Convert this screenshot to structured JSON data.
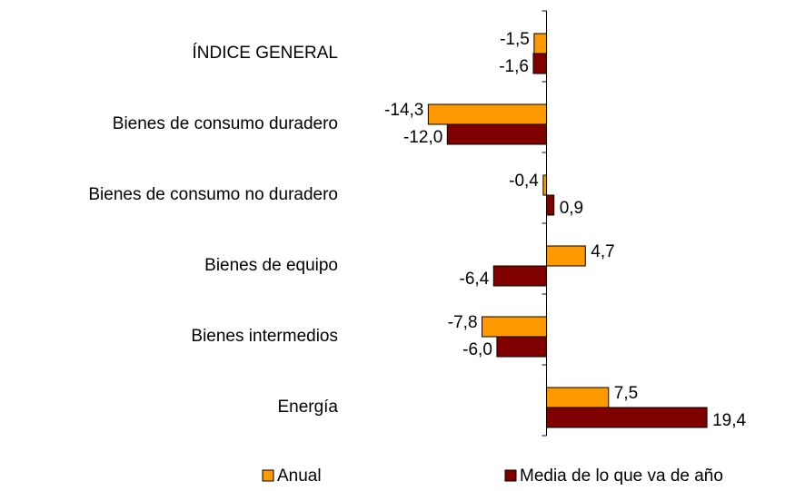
{
  "chart_data": {
    "type": "hbar",
    "categories": [
      "ÍNDICE GENERAL",
      "Bienes de consumo duradero",
      "Bienes de consumo no duradero",
      "Bienes de equipo",
      "Bienes intermedios",
      "Energía"
    ],
    "series": [
      {
        "name": "Anual",
        "color": "#ff9900",
        "values": [
          -1.5,
          -14.3,
          -0.4,
          4.7,
          -7.8,
          7.5
        ],
        "value_labels": [
          "-1,5",
          "-14,3",
          "-0,4",
          "4,7",
          "-7,8",
          "7,5"
        ]
      },
      {
        "name": "Media de lo que va de año",
        "color": "#800000",
        "values": [
          -1.6,
          -12.0,
          0.9,
          -6.4,
          -6.0,
          19.4
        ],
        "value_labels": [
          "-1,6",
          "-12,0",
          "0,9",
          "-6,4",
          "-6,0",
          "19,4"
        ]
      }
    ],
    "xlim": [
      -15,
      19.5
    ]
  }
}
